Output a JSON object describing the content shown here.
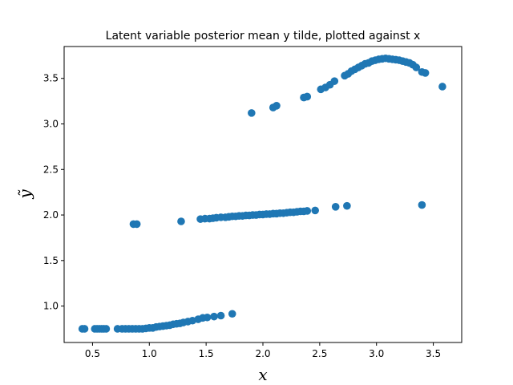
{
  "chart_data": {
    "type": "scatter",
    "title": "Latent variable posterior mean y tilde, plotted against x",
    "xlabel": "x",
    "ylabel": "ỹ",
    "xlim": [
      0.25,
      3.75
    ],
    "ylim": [
      0.6,
      3.85
    ],
    "xticks": [
      0.5,
      1.0,
      1.5,
      2.0,
      2.5,
      3.0,
      3.5
    ],
    "xtick_labels": [
      "0.5",
      "1.0",
      "1.5",
      "2.0",
      "2.5",
      "3.0",
      "3.5"
    ],
    "yticks": [
      1.0,
      1.5,
      2.0,
      2.5,
      3.0,
      3.5
    ],
    "ytick_labels": [
      "1.0",
      "1.5",
      "2.0",
      "2.5",
      "3.0",
      "3.5"
    ],
    "grid": false,
    "marker_color": "#1f77b4",
    "x": [
      0.41,
      0.43,
      0.52,
      0.54,
      0.56,
      0.58,
      0.6,
      0.62,
      0.72,
      0.76,
      0.79,
      0.82,
      0.85,
      0.88,
      0.91,
      0.94,
      0.97,
      1.0,
      1.03,
      1.06,
      1.09,
      1.12,
      1.15,
      1.18,
      1.21,
      1.24,
      1.27,
      1.3,
      1.34,
      1.38,
      1.43,
      1.47,
      1.51,
      1.57,
      1.63,
      1.73,
      0.86,
      0.89,
      1.28,
      1.45,
      1.49,
      1.53,
      1.56,
      1.59,
      1.63,
      1.67,
      1.7,
      1.73,
      1.76,
      1.79,
      1.82,
      1.85,
      1.88,
      1.91,
      1.94,
      1.97,
      2.0,
      2.03,
      2.06,
      2.09,
      2.12,
      2.15,
      2.18,
      2.21,
      2.24,
      2.27,
      2.3,
      2.33,
      2.36,
      2.39,
      2.46,
      2.64,
      2.74,
      3.4,
      1.9,
      2.09,
      2.12,
      2.36,
      2.39,
      2.51,
      2.55,
      2.59,
      2.63,
      2.72,
      2.75,
      2.78,
      2.81,
      2.84,
      2.87,
      2.9,
      2.93,
      2.96,
      2.99,
      3.02,
      3.05,
      3.08,
      3.11,
      3.14,
      3.17,
      3.2,
      3.23,
      3.26,
      3.29,
      3.32,
      3.35,
      3.4,
      3.43,
      3.58
    ],
    "y": [
      0.75,
      0.75,
      0.75,
      0.75,
      0.75,
      0.75,
      0.75,
      0.75,
      0.75,
      0.75,
      0.75,
      0.75,
      0.75,
      0.75,
      0.75,
      0.75,
      0.755,
      0.76,
      0.76,
      0.77,
      0.775,
      0.78,
      0.785,
      0.79,
      0.8,
      0.805,
      0.81,
      0.82,
      0.83,
      0.84,
      0.855,
      0.87,
      0.875,
      0.885,
      0.895,
      0.915,
      1.9,
      1.9,
      1.93,
      1.955,
      1.96,
      1.96,
      1.965,
      1.97,
      1.975,
      1.975,
      1.98,
      1.985,
      1.985,
      1.99,
      1.99,
      1.995,
      1.995,
      2.0,
      2.0,
      2.005,
      2.005,
      2.01,
      2.01,
      2.015,
      2.015,
      2.02,
      2.02,
      2.025,
      2.03,
      2.03,
      2.035,
      2.04,
      2.04,
      2.045,
      2.05,
      2.09,
      2.1,
      2.11,
      3.12,
      3.18,
      3.2,
      3.29,
      3.3,
      3.38,
      3.4,
      3.43,
      3.47,
      3.53,
      3.55,
      3.58,
      3.6,
      3.62,
      3.64,
      3.66,
      3.67,
      3.69,
      3.7,
      3.71,
      3.715,
      3.72,
      3.715,
      3.71,
      3.705,
      3.7,
      3.69,
      3.68,
      3.67,
      3.65,
      3.62,
      3.57,
      3.56,
      3.41
    ]
  }
}
